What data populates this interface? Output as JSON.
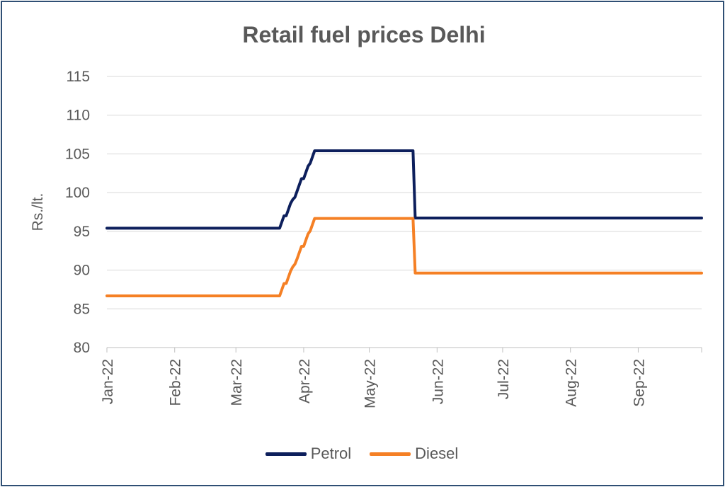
{
  "chart_data": {
    "type": "line",
    "title": "Retail fuel prices Delhi",
    "xlabel": "",
    "ylabel": "Rs./lt.",
    "ylim": [
      80,
      115
    ],
    "yticks": [
      80,
      85,
      90,
      95,
      100,
      105,
      110,
      115
    ],
    "x_tick_labels": [
      "Jan-22",
      "Feb-22",
      "Mar-22",
      "Apr-22",
      "May-22",
      "Jun-22",
      "Jul-22",
      "Aug-22",
      "Sep-22"
    ],
    "xlim": [
      "2022-01-01",
      "2022-09-30"
    ],
    "grid": true,
    "legend_position": "bottom",
    "series": [
      {
        "name": "Petrol",
        "color": "#0d1f5c",
        "points": [
          [
            "2022-01-01",
            95.41
          ],
          [
            "2022-03-21",
            95.41
          ],
          [
            "2022-03-22",
            96.21
          ],
          [
            "2022-03-23",
            97.01
          ],
          [
            "2022-03-24",
            97.01
          ],
          [
            "2022-03-25",
            97.81
          ],
          [
            "2022-03-26",
            98.61
          ],
          [
            "2022-03-27",
            99.11
          ],
          [
            "2022-03-28",
            99.41
          ],
          [
            "2022-03-29",
            100.21
          ],
          [
            "2022-03-30",
            101.01
          ],
          [
            "2022-03-31",
            101.81
          ],
          [
            "2022-04-01",
            101.81
          ],
          [
            "2022-04-02",
            102.61
          ],
          [
            "2022-04-03",
            103.41
          ],
          [
            "2022-04-04",
            103.81
          ],
          [
            "2022-04-05",
            104.61
          ],
          [
            "2022-04-06",
            105.41
          ],
          [
            "2022-05-21",
            105.41
          ],
          [
            "2022-05-22",
            96.72
          ],
          [
            "2022-09-30",
            96.72
          ]
        ]
      },
      {
        "name": "Diesel",
        "color": "#f58025",
        "points": [
          [
            "2022-01-01",
            86.67
          ],
          [
            "2022-03-21",
            86.67
          ],
          [
            "2022-03-22",
            87.47
          ],
          [
            "2022-03-23",
            88.27
          ],
          [
            "2022-03-24",
            88.27
          ],
          [
            "2022-03-25",
            89.07
          ],
          [
            "2022-03-26",
            89.87
          ],
          [
            "2022-03-27",
            90.42
          ],
          [
            "2022-03-28",
            90.77
          ],
          [
            "2022-03-29",
            91.47
          ],
          [
            "2022-03-30",
            92.27
          ],
          [
            "2022-03-31",
            93.07
          ],
          [
            "2022-04-01",
            93.07
          ],
          [
            "2022-04-02",
            93.87
          ],
          [
            "2022-04-03",
            94.67
          ],
          [
            "2022-04-04",
            95.07
          ],
          [
            "2022-04-05",
            95.87
          ],
          [
            "2022-04-06",
            96.67
          ],
          [
            "2022-05-21",
            96.67
          ],
          [
            "2022-05-22",
            89.62
          ],
          [
            "2022-09-30",
            89.62
          ]
        ]
      }
    ]
  }
}
